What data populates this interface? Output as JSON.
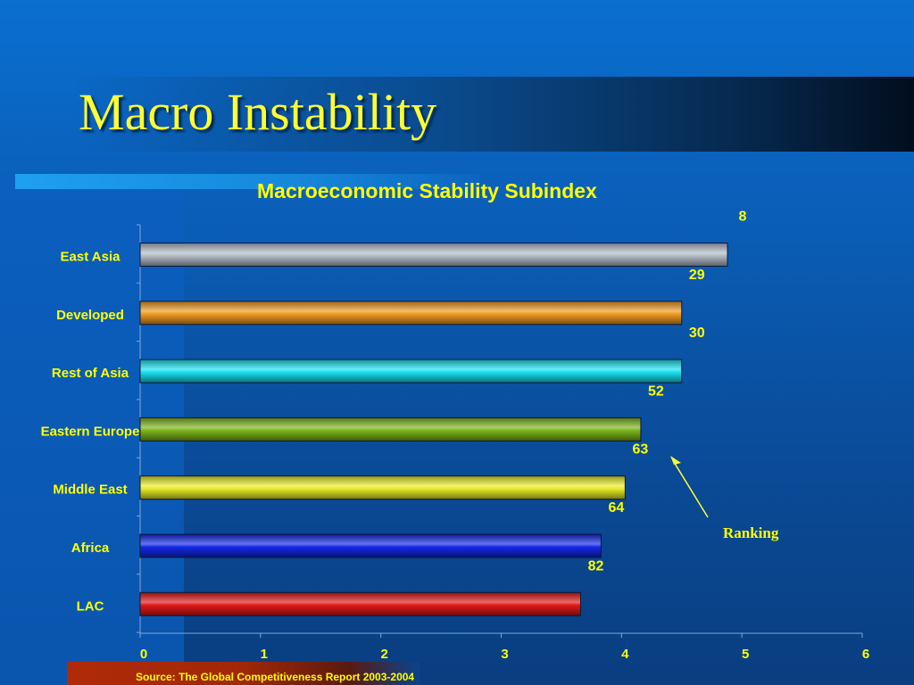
{
  "slide": {
    "title": "Macro Instability",
    "source": "Source: The Global Competitiveness Report 2003-2004",
    "annotation": "Ranking"
  },
  "chart_data": {
    "type": "bar",
    "orientation": "horizontal",
    "title": "Macroeconomic Stability Subindex",
    "xlabel": "",
    "ylabel": "",
    "xlim": [
      0,
      6
    ],
    "x_ticks": [
      "0",
      "1",
      "2",
      "3",
      "4",
      "5",
      "6"
    ],
    "grid": false,
    "categories": [
      "East Asia",
      "Developed",
      "Rest of Asia",
      "Eastern Europe",
      "Middle East",
      "Africa",
      "LAC"
    ],
    "values": [
      4.88,
      4.5,
      4.5,
      4.16,
      4.03,
      3.83,
      3.66
    ],
    "rankings": [
      "8",
      "29",
      "30",
      "52",
      "63",
      "64",
      "82"
    ],
    "colors": [
      "#b4bcc8",
      "#f09a20",
      "#18e0ee",
      "#7cb41a",
      "#e6ec26",
      "#1428e8",
      "#e01818"
    ]
  }
}
